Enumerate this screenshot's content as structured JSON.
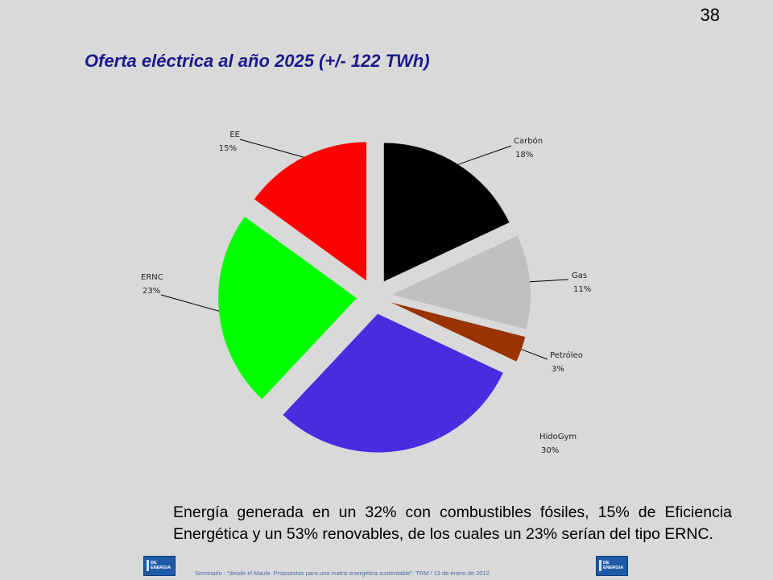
{
  "slide": {
    "number": "38",
    "title": "Oferta eléctrica al año 2025 (+/- 122 TWh)",
    "body": "Energía generada en un 32% con combustibles fósiles, 15% de Eficiencia Energética y un 53% renovables, de los cuales un 23% serían del tipo ERNC.",
    "footer": "Seminario : \"desde el Maule. Propuestas para una matriz energética sustentable\".  TRM  /  13 de enero de 2012",
    "logo_text": "DE ENERGIA"
  },
  "chart_data": {
    "type": "pie",
    "title": "Oferta eléctrica al año 2025 (+/- 122 TWh)",
    "start_angle_deg": 0,
    "direction": "clockwise",
    "exploded": true,
    "slices": [
      {
        "name": "Carbón",
        "value": 18,
        "label": "18%",
        "color": "#000000"
      },
      {
        "name": "Gas",
        "value": 11,
        "label": "11%",
        "color": "#c0c0c0"
      },
      {
        "name": "Petróleo",
        "value": 3,
        "label": "3%",
        "color": "#993300"
      },
      {
        "name": "HidoGym",
        "value": 30,
        "label": "30%",
        "color": "#4b2be0"
      },
      {
        "name": "ERNC",
        "value": 23,
        "label": "23%",
        "color": "#00ff00"
      },
      {
        "name": "EE",
        "value": 15,
        "label": "15%",
        "color": "#ff0000"
      }
    ]
  }
}
